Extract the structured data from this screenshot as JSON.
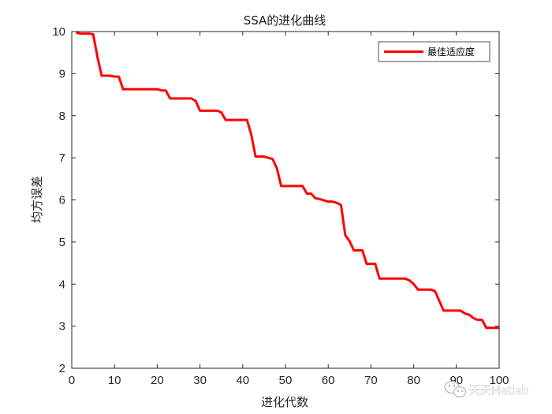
{
  "chart_data": {
    "type": "line",
    "title": "SSA的进化曲线",
    "xlabel": "进化代数",
    "ylabel": "均方误差",
    "xlim": [
      0,
      100
    ],
    "ylim": [
      2,
      10
    ],
    "xticks": [
      0,
      10,
      20,
      30,
      40,
      50,
      60,
      70,
      80,
      90,
      100
    ],
    "yticks": [
      2,
      3,
      4,
      5,
      6,
      7,
      8,
      9,
      10
    ],
    "grid": false,
    "legend_position": "top-right",
    "series": [
      {
        "name": "最佳适应度",
        "color": "#ff0000",
        "x": [
          1,
          2,
          3,
          4,
          5,
          6,
          7,
          8,
          9,
          10,
          11,
          12,
          13,
          14,
          15,
          16,
          17,
          18,
          19,
          20,
          21,
          22,
          23,
          24,
          25,
          26,
          27,
          28,
          29,
          30,
          31,
          32,
          33,
          34,
          35,
          36,
          37,
          38,
          39,
          40,
          41,
          42,
          43,
          44,
          45,
          46,
          47,
          48,
          49,
          50,
          51,
          52,
          53,
          54,
          55,
          56,
          57,
          58,
          59,
          60,
          61,
          62,
          63,
          64,
          65,
          66,
          67,
          68,
          69,
          70,
          71,
          72,
          73,
          74,
          75,
          76,
          77,
          78,
          79,
          80,
          81,
          82,
          83,
          84,
          85,
          86,
          87,
          88,
          89,
          90,
          91,
          92,
          93,
          94,
          95,
          96,
          97,
          98,
          99,
          100
        ],
        "y": [
          9.98,
          9.95,
          9.95,
          9.95,
          9.94,
          9.4,
          8.95,
          8.95,
          8.95,
          8.93,
          8.93,
          8.63,
          8.63,
          8.63,
          8.63,
          8.63,
          8.63,
          8.63,
          8.63,
          8.63,
          8.6,
          8.6,
          8.41,
          8.41,
          8.41,
          8.41,
          8.41,
          8.41,
          8.35,
          8.12,
          8.12,
          8.12,
          8.12,
          8.12,
          8.08,
          7.9,
          7.9,
          7.9,
          7.9,
          7.9,
          7.9,
          7.55,
          7.03,
          7.03,
          7.03,
          7.0,
          6.97,
          6.75,
          6.33,
          6.33,
          6.33,
          6.33,
          6.33,
          6.33,
          6.15,
          6.15,
          6.04,
          6.02,
          5.99,
          5.96,
          5.96,
          5.93,
          5.88,
          5.16,
          5.02,
          4.8,
          4.8,
          4.8,
          4.48,
          4.48,
          4.48,
          4.13,
          4.13,
          4.13,
          4.13,
          4.13,
          4.13,
          4.13,
          4.09,
          4.0,
          3.87,
          3.87,
          3.87,
          3.87,
          3.83,
          3.6,
          3.37,
          3.37,
          3.37,
          3.37,
          3.37,
          3.3,
          3.27,
          3.19,
          3.15,
          3.15,
          2.96,
          2.96,
          2.96,
          2.96
        ]
      }
    ]
  },
  "watermark": {
    "text": "天天Matlab",
    "icon": "wechat-logo-icon"
  }
}
